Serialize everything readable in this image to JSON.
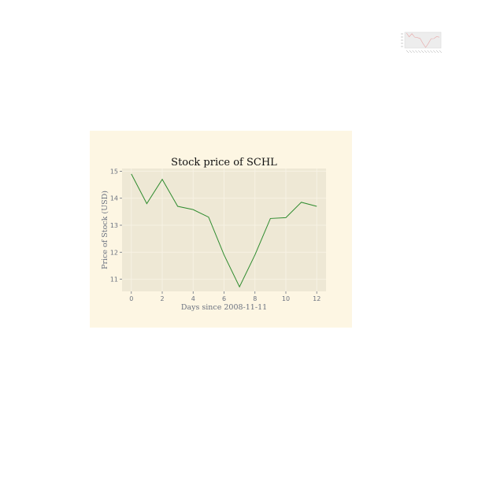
{
  "chart_data": {
    "type": "line",
    "title": "Stock price of SCHL",
    "xlabel": "Days since 2008-11-11",
    "ylabel": "Price of Stock (USD)",
    "x": [
      0,
      1,
      2,
      3,
      4,
      5,
      6,
      7,
      8,
      9,
      10,
      11,
      12
    ],
    "series": [
      {
        "values": [
          14.9,
          13.8,
          14.7,
          13.7,
          13.58,
          13.3,
          11.9,
          10.72,
          11.9,
          13.25,
          13.28,
          13.85,
          13.7
        ],
        "color": "#2e8b2e"
      }
    ],
    "xlim": [
      -0.6,
      12.6
    ],
    "ylim": [
      10.55,
      15.1
    ],
    "xticks": [
      0,
      2,
      4,
      6,
      8,
      10,
      12
    ],
    "yticks": [
      11,
      12,
      13,
      14,
      15
    ],
    "grid": true,
    "colors": {
      "figure_bg": "#fdf6e3",
      "axes_bg": "#eee8d5",
      "grid": "#f7f2e4",
      "tick_text": "#6b7280",
      "label_text": "#6b7280",
      "title_text": "#111111"
    }
  }
}
